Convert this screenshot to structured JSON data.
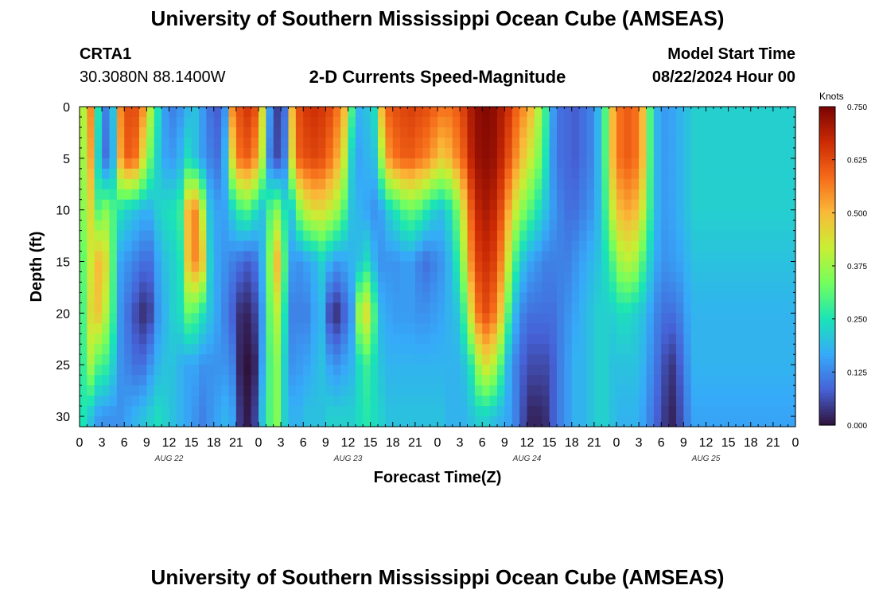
{
  "page": {
    "title": "University of Southern Mississippi Ocean Cube (AMSEAS)",
    "footer_title": "University of Southern Mississippi Ocean Cube (AMSEAS)",
    "station_id": "CRTA1",
    "station_coords": "30.3080N  88.1400W",
    "model_start_label": "Model Start Time",
    "model_start_value": "08/22/2024 Hour 00"
  },
  "chart_data": {
    "type": "heatmap",
    "title": "2-D Currents Speed-Magnitude",
    "xlabel": "Forecast Time(Z)",
    "ylabel": "Depth (ft)",
    "x_hours_range": [
      0,
      96
    ],
    "y_depth_range": [
      0,
      31
    ],
    "y_inverted": true,
    "x_tick_labels": [
      "0",
      "3",
      "6",
      "9",
      "12",
      "15",
      "18",
      "21",
      "0",
      "3",
      "6",
      "9",
      "12",
      "15",
      "18",
      "21",
      "0",
      "3",
      "6",
      "9",
      "12",
      "15",
      "18",
      "21",
      "0",
      "3",
      "6",
      "9",
      "12",
      "15",
      "18",
      "21",
      "0"
    ],
    "y_tick_labels": [
      "0",
      "5",
      "10",
      "15",
      "20",
      "25",
      "30"
    ],
    "date_labels": [
      {
        "label": "AUG 22",
        "hour": 12
      },
      {
        "label": "AUG 23",
        "hour": 36
      },
      {
        "label": "AUG 24",
        "hour": 60
      },
      {
        "label": "AUG 25",
        "hour": 84
      }
    ],
    "colorbar": {
      "unit": "Knots",
      "range": [
        0.0,
        0.75
      ],
      "tick_labels": [
        "0.750",
        "0.625",
        "0.500",
        "0.375",
        "0.250",
        "0.125",
        "0.000"
      ]
    },
    "colormap": [
      "#30123b",
      "#4662d7",
      "#36aaf9",
      "#1ae4b6",
      "#72fe5e",
      "#c7ef34",
      "#faba39",
      "#f66b19",
      "#cb2a04",
      "#7a0403"
    ],
    "speed_profile": [
      {
        "h": 0,
        "s": [
          0.4,
          0.38,
          0.36,
          0.32,
          0.3,
          0.28,
          0.25
        ]
      },
      {
        "h": 1,
        "s": [
          0.55,
          0.52,
          0.45,
          0.42,
          0.45,
          0.38,
          0.2
        ]
      },
      {
        "h": 2,
        "s": [
          0.25,
          0.22,
          0.3,
          0.5,
          0.48,
          0.3,
          0.15
        ]
      },
      {
        "h": 3,
        "s": [
          0.12,
          0.1,
          0.35,
          0.45,
          0.4,
          0.28,
          0.14
        ]
      },
      {
        "h": 4,
        "s": [
          0.2,
          0.18,
          0.3,
          0.3,
          0.28,
          0.22,
          0.14
        ]
      },
      {
        "h": 5,
        "s": [
          0.55,
          0.52,
          0.25,
          0.16,
          0.14,
          0.14,
          0.14
        ]
      },
      {
        "h": 6,
        "s": [
          0.62,
          0.6,
          0.22,
          0.14,
          0.1,
          0.12,
          0.16
        ]
      },
      {
        "h": 7,
        "s": [
          0.62,
          0.58,
          0.2,
          0.12,
          0.06,
          0.1,
          0.18
        ]
      },
      {
        "h": 8,
        "s": [
          0.55,
          0.45,
          0.18,
          0.1,
          0.03,
          0.1,
          0.2
        ]
      },
      {
        "h": 9,
        "s": [
          0.4,
          0.32,
          0.18,
          0.1,
          0.05,
          0.14,
          0.22
        ]
      },
      {
        "h": 10,
        "s": [
          0.25,
          0.22,
          0.22,
          0.16,
          0.14,
          0.18,
          0.24
        ]
      },
      {
        "h": 11,
        "s": [
          0.15,
          0.16,
          0.24,
          0.2,
          0.18,
          0.2,
          0.22
        ]
      },
      {
        "h": 12,
        "s": [
          0.12,
          0.15,
          0.25,
          0.22,
          0.22,
          0.2,
          0.2
        ]
      },
      {
        "h": 13,
        "s": [
          0.14,
          0.18,
          0.28,
          0.25,
          0.24,
          0.18,
          0.18
        ]
      },
      {
        "h": 14,
        "s": [
          0.18,
          0.24,
          0.5,
          0.48,
          0.32,
          0.16,
          0.16
        ]
      },
      {
        "h": 15,
        "s": [
          0.2,
          0.2,
          0.55,
          0.55,
          0.3,
          0.16,
          0.14
        ]
      },
      {
        "h": 16,
        "s": [
          0.15,
          0.15,
          0.4,
          0.48,
          0.25,
          0.14,
          0.12
        ]
      },
      {
        "h": 17,
        "s": [
          0.1,
          0.12,
          0.2,
          0.22,
          0.2,
          0.14,
          0.14
        ]
      },
      {
        "h": 18,
        "s": [
          0.08,
          0.1,
          0.16,
          0.16,
          0.16,
          0.14,
          0.16
        ]
      },
      {
        "h": 19,
        "s": [
          0.14,
          0.18,
          0.16,
          0.14,
          0.12,
          0.14,
          0.18
        ]
      },
      {
        "h": 20,
        "s": [
          0.55,
          0.45,
          0.22,
          0.12,
          0.08,
          0.12,
          0.16
        ]
      },
      {
        "h": 21,
        "s": [
          0.62,
          0.58,
          0.28,
          0.1,
          0.03,
          0.02,
          0.04
        ]
      },
      {
        "h": 22,
        "s": [
          0.65,
          0.6,
          0.3,
          0.08,
          0.02,
          0.0,
          0.01
        ]
      },
      {
        "h": 23,
        "s": [
          0.62,
          0.55,
          0.25,
          0.1,
          0.05,
          0.02,
          0.05
        ]
      },
      {
        "h": 24,
        "s": [
          0.45,
          0.4,
          0.2,
          0.18,
          0.15,
          0.16,
          0.2
        ]
      },
      {
        "h": 25,
        "s": [
          0.15,
          0.12,
          0.3,
          0.35,
          0.32,
          0.3,
          0.3
        ]
      },
      {
        "h": 26,
        "s": [
          0.05,
          0.06,
          0.35,
          0.5,
          0.4,
          0.35,
          0.35
        ]
      },
      {
        "h": 27,
        "s": [
          0.1,
          0.12,
          0.25,
          0.3,
          0.25,
          0.22,
          0.22
        ]
      },
      {
        "h": 28,
        "s": [
          0.5,
          0.45,
          0.22,
          0.15,
          0.12,
          0.14,
          0.18
        ]
      },
      {
        "h": 29,
        "s": [
          0.62,
          0.6,
          0.35,
          0.14,
          0.12,
          0.15,
          0.18
        ]
      },
      {
        "h": 30,
        "s": [
          0.65,
          0.62,
          0.42,
          0.16,
          0.12,
          0.16,
          0.2
        ]
      },
      {
        "h": 31,
        "s": [
          0.66,
          0.63,
          0.45,
          0.18,
          0.16,
          0.18,
          0.2
        ]
      },
      {
        "h": 32,
        "s": [
          0.65,
          0.62,
          0.45,
          0.22,
          0.18,
          0.2,
          0.2
        ]
      },
      {
        "h": 33,
        "s": [
          0.63,
          0.58,
          0.42,
          0.18,
          0.06,
          0.16,
          0.22
        ]
      },
      {
        "h": 34,
        "s": [
          0.58,
          0.52,
          0.38,
          0.15,
          0.03,
          0.14,
          0.22
        ]
      },
      {
        "h": 35,
        "s": [
          0.5,
          0.42,
          0.3,
          0.16,
          0.08,
          0.16,
          0.22
        ]
      },
      {
        "h": 36,
        "s": [
          0.3,
          0.22,
          0.2,
          0.18,
          0.15,
          0.18,
          0.22
        ]
      },
      {
        "h": 37,
        "s": [
          0.18,
          0.16,
          0.18,
          0.2,
          0.38,
          0.24,
          0.24
        ]
      },
      {
        "h": 38,
        "s": [
          0.2,
          0.18,
          0.16,
          0.24,
          0.45,
          0.28,
          0.26
        ]
      },
      {
        "h": 39,
        "s": [
          0.24,
          0.2,
          0.14,
          0.18,
          0.3,
          0.24,
          0.24
        ]
      },
      {
        "h": 40,
        "s": [
          0.5,
          0.38,
          0.16,
          0.14,
          0.18,
          0.2,
          0.22
        ]
      },
      {
        "h": 41,
        "s": [
          0.6,
          0.54,
          0.22,
          0.14,
          0.16,
          0.18,
          0.2
        ]
      },
      {
        "h": 42,
        "s": [
          0.62,
          0.58,
          0.26,
          0.14,
          0.15,
          0.18,
          0.2
        ]
      },
      {
        "h": 43,
        "s": [
          0.63,
          0.6,
          0.3,
          0.15,
          0.15,
          0.18,
          0.2
        ]
      },
      {
        "h": 44,
        "s": [
          0.64,
          0.6,
          0.32,
          0.15,
          0.15,
          0.18,
          0.2
        ]
      },
      {
        "h": 45,
        "s": [
          0.63,
          0.58,
          0.3,
          0.12,
          0.14,
          0.18,
          0.2
        ]
      },
      {
        "h": 46,
        "s": [
          0.62,
          0.56,
          0.26,
          0.1,
          0.14,
          0.18,
          0.2
        ]
      },
      {
        "h": 47,
        "s": [
          0.6,
          0.52,
          0.22,
          0.12,
          0.15,
          0.18,
          0.2
        ]
      },
      {
        "h": 48,
        "s": [
          0.58,
          0.48,
          0.2,
          0.14,
          0.16,
          0.18,
          0.2
        ]
      },
      {
        "h": 49,
        "s": [
          0.58,
          0.5,
          0.24,
          0.18,
          0.18,
          0.18,
          0.18
        ]
      },
      {
        "h": 50,
        "s": [
          0.6,
          0.55,
          0.32,
          0.25,
          0.2,
          0.18,
          0.18
        ]
      },
      {
        "h": 51,
        "s": [
          0.64,
          0.6,
          0.45,
          0.38,
          0.28,
          0.2,
          0.18
        ]
      },
      {
        "h": 52,
        "s": [
          0.7,
          0.68,
          0.6,
          0.55,
          0.45,
          0.26,
          0.2
        ]
      },
      {
        "h": 53,
        "s": [
          0.73,
          0.72,
          0.68,
          0.64,
          0.58,
          0.38,
          0.22
        ]
      },
      {
        "h": 54,
        "s": [
          0.74,
          0.73,
          0.7,
          0.66,
          0.62,
          0.44,
          0.22
        ]
      },
      {
        "h": 55,
        "s": [
          0.73,
          0.72,
          0.68,
          0.64,
          0.58,
          0.4,
          0.2
        ]
      },
      {
        "h": 56,
        "s": [
          0.7,
          0.68,
          0.62,
          0.56,
          0.48,
          0.3,
          0.18
        ]
      },
      {
        "h": 57,
        "s": [
          0.66,
          0.62,
          0.52,
          0.42,
          0.3,
          0.18,
          0.16
        ]
      },
      {
        "h": 58,
        "s": [
          0.6,
          0.55,
          0.42,
          0.28,
          0.18,
          0.12,
          0.12
        ]
      },
      {
        "h": 59,
        "s": [
          0.55,
          0.48,
          0.35,
          0.2,
          0.12,
          0.08,
          0.06
        ]
      },
      {
        "h": 60,
        "s": [
          0.5,
          0.42,
          0.3,
          0.16,
          0.1,
          0.06,
          0.02
        ]
      },
      {
        "h": 61,
        "s": [
          0.4,
          0.35,
          0.25,
          0.14,
          0.1,
          0.06,
          0.02
        ]
      },
      {
        "h": 62,
        "s": [
          0.28,
          0.25,
          0.2,
          0.12,
          0.1,
          0.06,
          0.03
        ]
      },
      {
        "h": 63,
        "s": [
          0.15,
          0.14,
          0.15,
          0.12,
          0.1,
          0.08,
          0.08
        ]
      },
      {
        "h": 64,
        "s": [
          0.1,
          0.1,
          0.12,
          0.12,
          0.12,
          0.12,
          0.12
        ]
      },
      {
        "h": 65,
        "s": [
          0.09,
          0.09,
          0.1,
          0.12,
          0.14,
          0.15,
          0.15
        ]
      },
      {
        "h": 66,
        "s": [
          0.08,
          0.08,
          0.1,
          0.14,
          0.16,
          0.18,
          0.18
        ]
      },
      {
        "h": 67,
        "s": [
          0.1,
          0.1,
          0.12,
          0.16,
          0.18,
          0.18,
          0.18
        ]
      },
      {
        "h": 68,
        "s": [
          0.12,
          0.12,
          0.14,
          0.18,
          0.2,
          0.2,
          0.2
        ]
      },
      {
        "h": 69,
        "s": [
          0.18,
          0.18,
          0.18,
          0.2,
          0.22,
          0.22,
          0.22
        ]
      },
      {
        "h": 70,
        "s": [
          0.3,
          0.3,
          0.28,
          0.24,
          0.22,
          0.22,
          0.22
        ]
      },
      {
        "h": 71,
        "s": [
          0.5,
          0.5,
          0.42,
          0.3,
          0.22,
          0.2,
          0.2
        ]
      },
      {
        "h": 72,
        "s": [
          0.58,
          0.58,
          0.5,
          0.38,
          0.24,
          0.2,
          0.18
        ]
      },
      {
        "h": 73,
        "s": [
          0.6,
          0.6,
          0.52,
          0.4,
          0.24,
          0.2,
          0.18
        ]
      },
      {
        "h": 74,
        "s": [
          0.58,
          0.58,
          0.5,
          0.38,
          0.22,
          0.2,
          0.18
        ]
      },
      {
        "h": 75,
        "s": [
          0.5,
          0.5,
          0.42,
          0.3,
          0.2,
          0.18,
          0.16
        ]
      },
      {
        "h": 76,
        "s": [
          0.3,
          0.3,
          0.28,
          0.22,
          0.16,
          0.14,
          0.12
        ]
      },
      {
        "h": 77,
        "s": [
          0.18,
          0.18,
          0.18,
          0.16,
          0.12,
          0.1,
          0.08
        ]
      },
      {
        "h": 78,
        "s": [
          0.15,
          0.15,
          0.15,
          0.14,
          0.1,
          0.06,
          0.04
        ]
      },
      {
        "h": 79,
        "s": [
          0.16,
          0.16,
          0.16,
          0.15,
          0.1,
          0.04,
          0.02
        ]
      },
      {
        "h": 80,
        "s": [
          0.18,
          0.18,
          0.18,
          0.16,
          0.12,
          0.08,
          0.06
        ]
      },
      {
        "h": 81,
        "s": [
          0.2,
          0.2,
          0.2,
          0.18,
          0.16,
          0.14,
          0.12
        ]
      },
      {
        "h": 82,
        "s": [
          0.22,
          0.22,
          0.22,
          0.2,
          0.18,
          0.18,
          0.16
        ]
      }
    ]
  }
}
